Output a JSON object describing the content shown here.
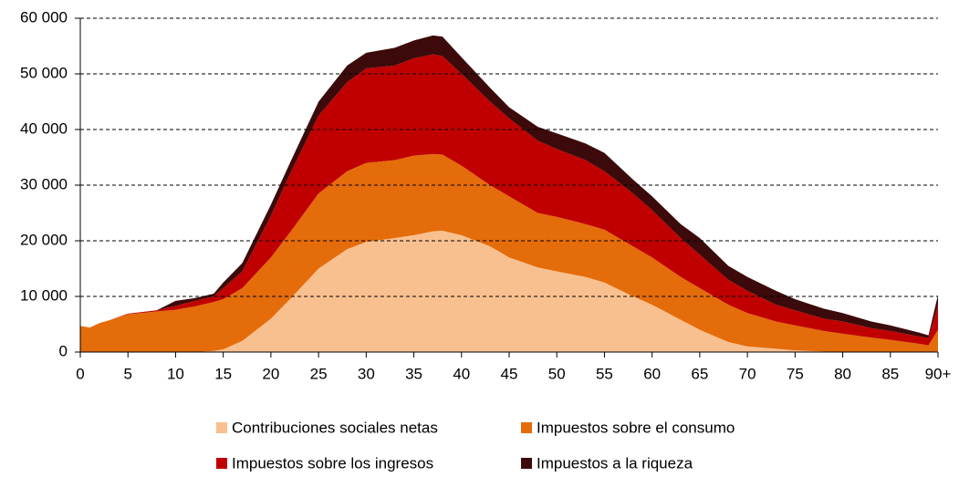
{
  "chart_data": {
    "type": "stacked-area",
    "x": [
      0,
      1,
      2,
      3,
      5,
      8,
      10,
      12,
      14,
      15,
      17,
      20,
      22,
      25,
      28,
      30,
      33,
      35,
      37,
      38,
      40,
      43,
      45,
      48,
      50,
      53,
      55,
      58,
      60,
      63,
      65,
      68,
      70,
      73,
      75,
      78,
      80,
      83,
      85,
      88,
      89,
      90
    ],
    "series": [
      {
        "name": "Contribuciones sociales netas",
        "color": "#f9c08f",
        "values": [
          0,
          0,
          0,
          0,
          0,
          0,
          0,
          0,
          200,
          500,
          2000,
          6000,
          9500,
          15000,
          18500,
          19800,
          20500,
          21000,
          21700,
          21800,
          21000,
          19000,
          17000,
          15200,
          14500,
          13500,
          12500,
          10000,
          8500,
          5800,
          4000,
          1800,
          1000,
          600,
          300,
          100,
          0,
          0,
          0,
          0,
          0,
          0
        ]
      },
      {
        "name": "Impuestos sobre el consumo",
        "color": "#e46c0a",
        "values": [
          4700,
          4400,
          5200,
          5700,
          6800,
          7300,
          7600,
          8200,
          8800,
          9000,
          9500,
          11000,
          12000,
          13500,
          14000,
          14200,
          14000,
          14300,
          13900,
          13700,
          12500,
          11000,
          11000,
          9800,
          9800,
          9500,
          9500,
          9000,
          8500,
          7700,
          7500,
          6700,
          6000,
          4900,
          4500,
          3700,
          3300,
          2600,
          2200,
          1500,
          1200,
          4000
        ]
      },
      {
        "name": "Impuestos sobre los ingresos",
        "color": "#c00000",
        "values": [
          0,
          0,
          0,
          0,
          100,
          200,
          700,
          1000,
          1000,
          2000,
          3000,
          7500,
          10500,
          14000,
          16000,
          17000,
          17000,
          17500,
          17900,
          17700,
          16500,
          15000,
          14000,
          13000,
          12200,
          11500,
          10500,
          9500,
          8500,
          7000,
          6000,
          4500,
          4000,
          3000,
          2700,
          2200,
          2200,
          1700,
          1600,
          1300,
          1300,
          4500
        ]
      },
      {
        "name": "Impuestos a la riqueza",
        "color": "#3c0a0a",
        "values": [
          0,
          0,
          0,
          0,
          0,
          0,
          900,
          500,
          500,
          1000,
          1500,
          2000,
          2000,
          2500,
          3000,
          2800,
          3200,
          3200,
          3400,
          3500,
          3000,
          2500,
          2000,
          2500,
          2800,
          3000,
          3300,
          2500,
          2500,
          2500,
          3000,
          2500,
          2500,
          2500,
          2000,
          1800,
          1500,
          1200,
          1000,
          700,
          500,
          1800
        ]
      }
    ],
    "xlim": [
      0,
      90
    ],
    "xticks": [
      0,
      5,
      10,
      15,
      20,
      25,
      30,
      35,
      40,
      45,
      50,
      55,
      60,
      65,
      70,
      75,
      80,
      85,
      {
        "value": 90,
        "label": "90+"
      }
    ],
    "ylim": [
      0,
      60000
    ],
    "yticks": [
      0,
      {
        "value": 10000,
        "label": "10 000"
      },
      {
        "value": 20000,
        "label": "20 000"
      },
      {
        "value": 30000,
        "label": "30 000"
      },
      {
        "value": 40000,
        "label": "40 000"
      },
      {
        "value": 50000,
        "label": "50 000"
      },
      {
        "value": 60000,
        "label": "60 000"
      }
    ],
    "grid": true
  }
}
